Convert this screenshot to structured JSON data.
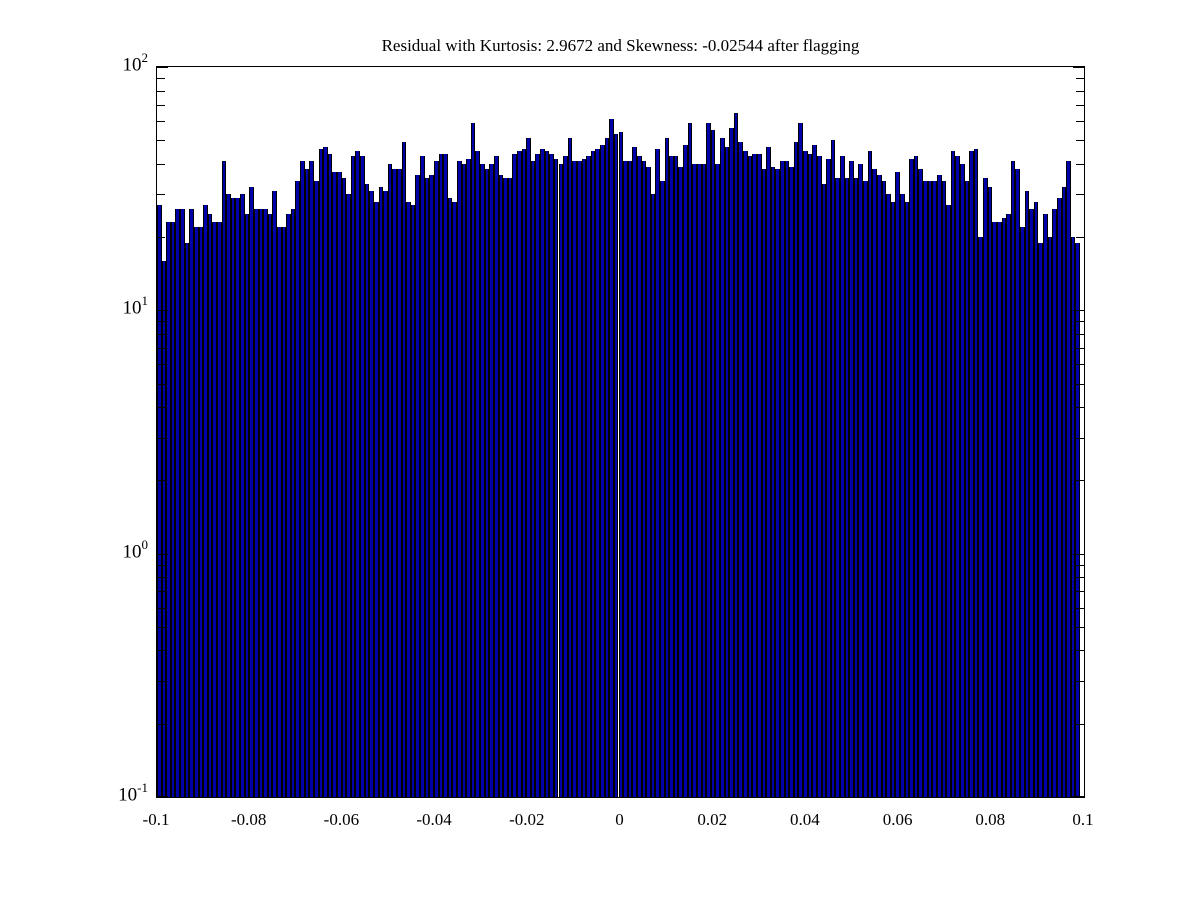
{
  "figure": {
    "background": "#ffffff"
  },
  "chart_data": {
    "type": "bar",
    "subtype": "histogram",
    "title": "Residual with Kurtosis: 2.9672 and Skewness: -0.02544 after flagging",
    "xlabel": "",
    "ylabel": "",
    "yscale": "log",
    "ylim": [
      0.1,
      100
    ],
    "xlim": [
      -0.1,
      0.1
    ],
    "bins": 200,
    "grid": false,
    "legend": null,
    "bar_color": "#0000a8",
    "bar_edge_color": "#000000",
    "x_tick_labels": [
      "-0.1",
      "-0.08",
      "-0.06",
      "-0.04",
      "-0.02",
      "0",
      "0.02",
      "0.04",
      "0.06",
      "0.08",
      "0.1"
    ],
    "x_tick_values": [
      -0.1,
      -0.08,
      -0.06,
      -0.04,
      -0.02,
      0,
      0.02,
      0.04,
      0.06,
      0.08,
      0.1
    ],
    "y_tick_labels": [
      {
        "base": "10",
        "exp": "2",
        "value": 100
      },
      {
        "base": "10",
        "exp": "1",
        "value": 10
      },
      {
        "base": "10",
        "exp": "0",
        "value": 1
      },
      {
        "base": "10",
        "exp": "-1",
        "value": 0.1
      }
    ],
    "values": [
      27,
      16,
      23,
      23,
      26,
      26,
      19,
      26,
      22,
      22,
      27,
      25,
      23,
      23,
      41,
      30,
      29,
      29,
      30,
      25,
      32,
      26,
      26,
      26,
      25,
      31,
      22,
      22,
      25,
      26,
      34,
      41,
      38,
      41,
      34,
      46,
      47,
      44,
      37,
      37,
      35,
      30,
      43,
      45,
      43,
      33,
      31,
      28,
      32,
      31,
      40,
      38,
      38,
      49,
      28,
      27,
      36,
      43,
      35,
      36,
      41,
      44,
      44,
      29,
      28,
      41,
      40,
      42,
      59,
      45,
      40,
      38,
      40,
      43,
      36,
      35,
      35,
      44,
      45,
      46,
      51,
      41,
      44,
      46,
      45,
      44,
      42,
      40,
      43,
      51,
      41,
      41,
      42,
      43,
      45,
      46,
      48,
      51,
      61,
      53,
      54,
      41,
      41,
      47,
      43,
      41,
      39,
      30,
      46,
      34,
      51,
      43,
      43,
      39,
      48,
      59,
      40,
      40,
      40,
      59,
      55,
      40,
      51,
      47,
      56,
      65,
      49,
      45,
      43,
      44,
      44,
      38,
      47,
      39,
      38,
      41,
      41,
      39,
      49,
      59,
      45,
      44,
      48,
      43,
      33,
      42,
      50,
      35,
      43,
      35,
      41,
      35,
      40,
      34,
      45,
      38,
      36,
      34,
      30,
      28,
      37,
      30,
      28,
      42,
      43,
      38,
      34,
      34,
      34,
      36,
      34,
      27,
      45,
      43,
      40,
      34,
      45,
      46,
      20,
      35,
      32,
      23,
      23,
      24,
      25,
      41,
      38,
      22,
      31,
      26,
      28,
      19,
      25,
      20,
      26,
      29,
      32,
      41,
      20,
      19
    ]
  }
}
